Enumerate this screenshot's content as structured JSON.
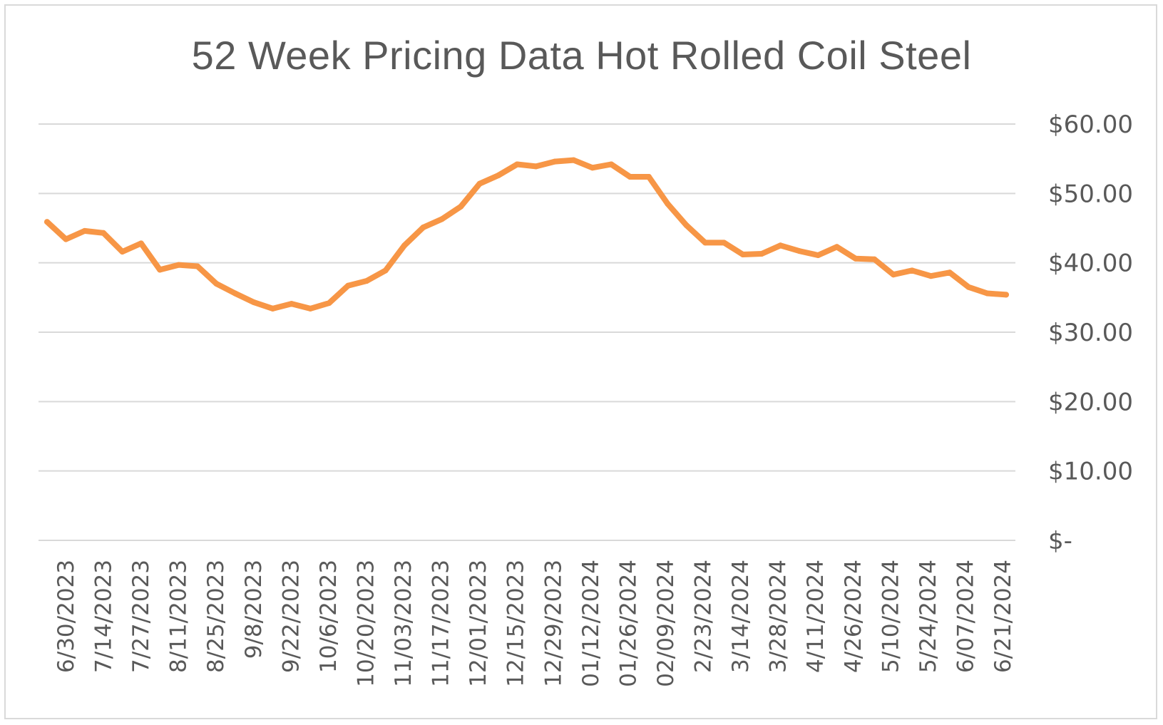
{
  "chart_data": {
    "type": "line",
    "title": "52 Week Pricing Data Hot Rolled Coil Steel",
    "xlabel": "",
    "ylabel": "",
    "ylim": [
      0,
      60
    ],
    "y_ticks": [
      {
        "value": 60,
        "label": "$60.00"
      },
      {
        "value": 50,
        "label": "$50.00"
      },
      {
        "value": 40,
        "label": "$40.00"
      },
      {
        "value": 30,
        "label": "$30.00"
      },
      {
        "value": 20,
        "label": "$20.00"
      },
      {
        "value": 10,
        "label": "$10.00"
      },
      {
        "value": 0,
        "label": "$-"
      }
    ],
    "y_axis_side": "right",
    "grid": true,
    "legend": "none",
    "line_color": "#f79646",
    "x_labels": [
      "6/30/2023",
      "7/14/2023",
      "7/27/2023",
      "8/11/2023",
      "8/25/2023",
      "9/8/2023",
      "9/22/2023",
      "10/6/2023",
      "10/20/2023",
      "11/03/2023",
      "11/17/2023",
      "12/01/2023",
      "12/15/2023",
      "12/29/2023",
      "01/12/2024",
      "01/26/2024",
      "02/09/2024",
      "2/23/2024",
      "3/14/2024",
      "3/28/2024",
      "4/11/2024",
      "4/26/2024",
      "5/10/2024",
      "5/24/2024",
      "6/07/2024",
      "6/21/2024"
    ],
    "series": [
      {
        "values": [
          45.9,
          43.4,
          44.6,
          44.3,
          41.6,
          42.8,
          39.0,
          39.7,
          39.5,
          37.0,
          35.6,
          34.3,
          33.4,
          34.1,
          33.4,
          34.2,
          36.7,
          37.4,
          38.9,
          42.5,
          45.1,
          46.3,
          48.1,
          51.4,
          52.6,
          54.2,
          53.9,
          54.6,
          54.8,
          53.7,
          54.2,
          52.4,
          52.4,
          48.5,
          45.4,
          42.9,
          42.9,
          41.2,
          41.3,
          42.5,
          41.7,
          41.1,
          42.3,
          40.6,
          40.5,
          38.3,
          38.9,
          38.1,
          38.6,
          36.5,
          35.6,
          35.4
        ]
      }
    ]
  }
}
